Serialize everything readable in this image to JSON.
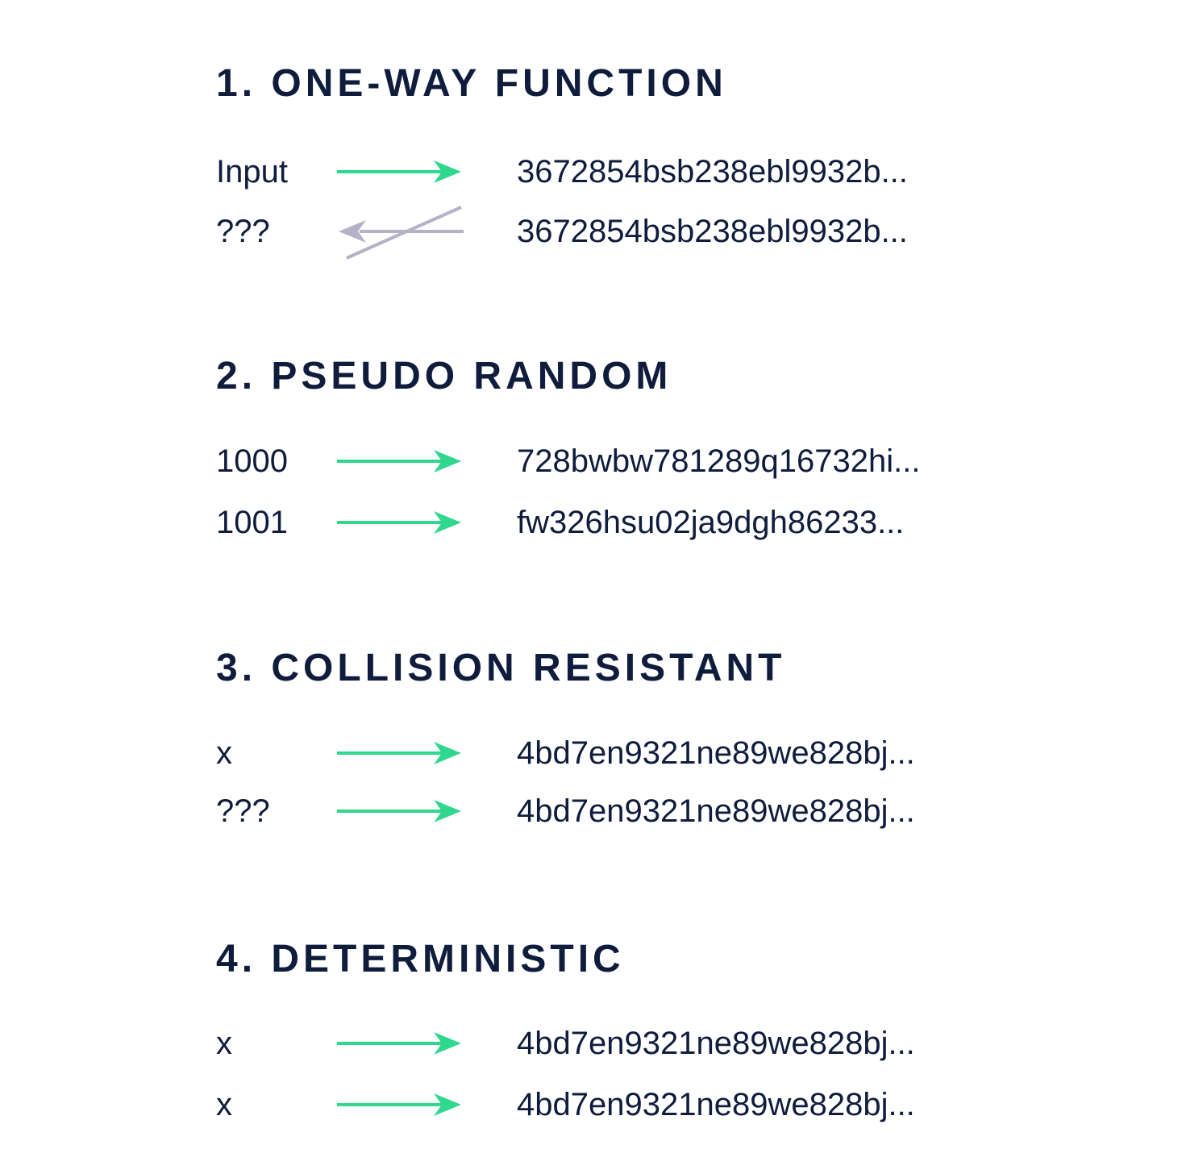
{
  "colors": {
    "text": "#101c3c",
    "arrow_forward": "#2fd78f",
    "arrow_blocked": "#b4b2c6"
  },
  "sections": [
    {
      "title": "1. ONE-WAY FUNCTION",
      "rows": [
        {
          "input": "Input",
          "output": "3672854bsb238ebl9932b...",
          "arrow": "forward"
        },
        {
          "input": "???",
          "output": "3672854bsb238ebl9932b...",
          "arrow": "reverse-crossed"
        }
      ]
    },
    {
      "title": "2. PSEUDO RANDOM",
      "rows": [
        {
          "input": "1000",
          "output": "728bwbw781289q16732hi...",
          "arrow": "forward"
        },
        {
          "input": "1001",
          "output": "fw326hsu02ja9dgh86233...",
          "arrow": "forward"
        }
      ]
    },
    {
      "title": "3. COLLISION RESISTANT",
      "rows": [
        {
          "input": "x",
          "output": "4bd7en9321ne89we828bj...",
          "arrow": "forward"
        },
        {
          "input": "???",
          "output": "4bd7en9321ne89we828bj...",
          "arrow": "forward"
        }
      ]
    },
    {
      "title": "4. DETERMINISTIC",
      "rows": [
        {
          "input": "x",
          "output": "4bd7en9321ne89we828bj...",
          "arrow": "forward"
        },
        {
          "input": "x",
          "output": "4bd7en9321ne89we828bj...",
          "arrow": "forward"
        }
      ]
    }
  ]
}
